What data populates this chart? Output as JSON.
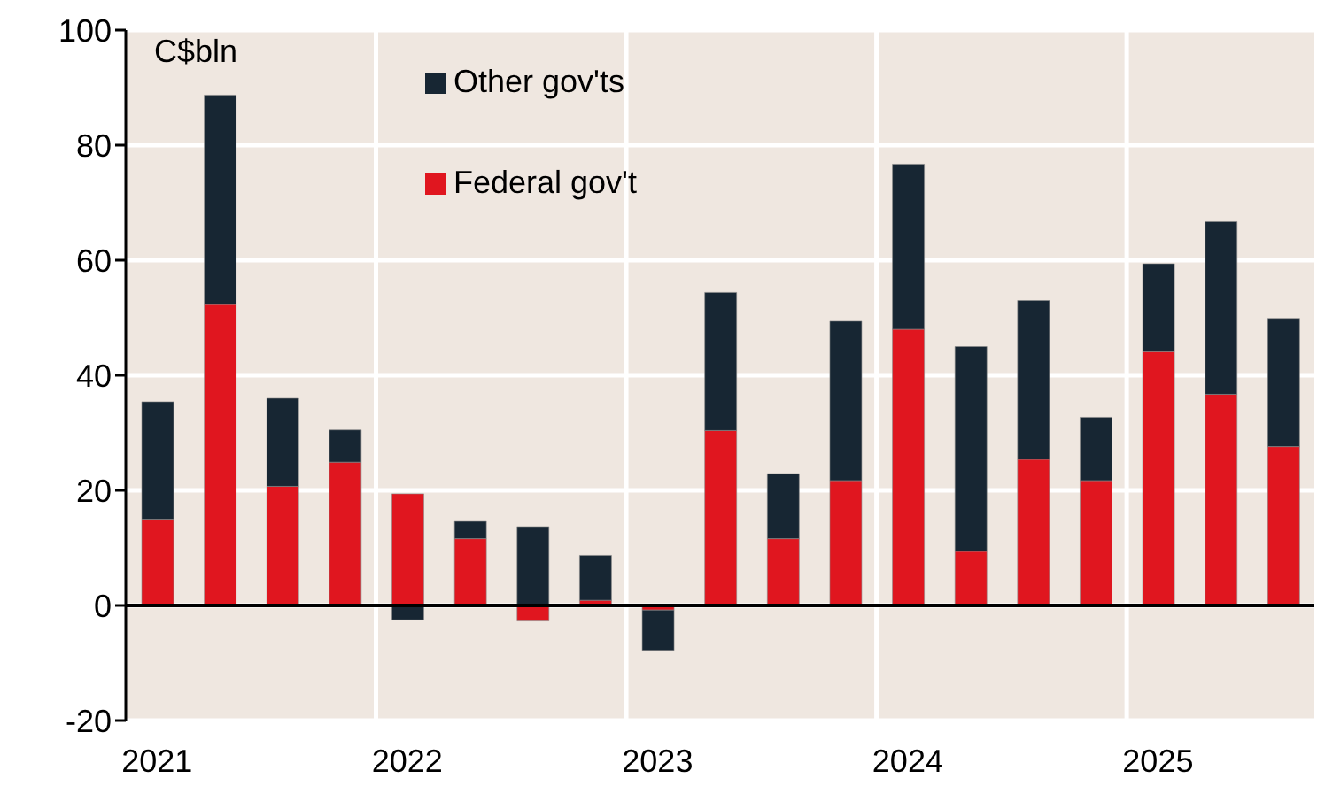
{
  "chart_data": {
    "type": "bar",
    "stacked": true,
    "ylabel": "C$bln",
    "categories": [
      "2021",
      null,
      null,
      null,
      "2022",
      null,
      null,
      null,
      "2023",
      null,
      null,
      null,
      "2024",
      null,
      null,
      null,
      "2025",
      null,
      null
    ],
    "series": [
      {
        "name": "Federal gov't",
        "color": "#e0161f",
        "values": [
          15.0,
          52.3,
          20.7,
          24.9,
          19.4,
          11.6,
          -2.7,
          0.9,
          -0.8,
          30.4,
          11.6,
          21.7,
          48.0,
          9.4,
          25.4,
          21.7,
          44.1,
          36.7,
          27.6
        ]
      },
      {
        "name": "Other gov'ts",
        "color": "#172633",
        "values": [
          20.4,
          36.4,
          15.3,
          5.6,
          -2.5,
          3.0,
          13.7,
          7.8,
          -7.0,
          24.0,
          11.3,
          27.7,
          28.7,
          35.6,
          27.6,
          11.0,
          15.3,
          30.0,
          22.3
        ]
      }
    ],
    "ylim": [
      -20,
      100
    ],
    "yticks": [
      -20,
      0,
      20,
      40,
      60,
      80,
      100
    ],
    "grid": true,
    "legend": "top",
    "ref_lines": [
      {
        "axis": "y",
        "value": 0,
        "color": "#000000"
      }
    ]
  }
}
